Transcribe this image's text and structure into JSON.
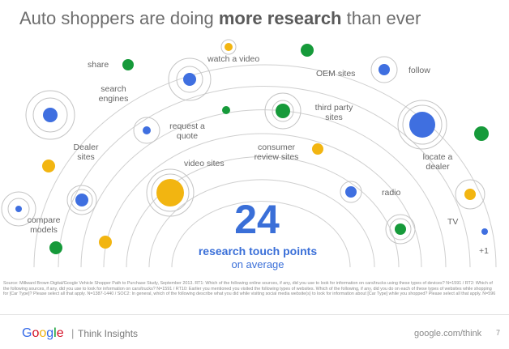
{
  "title": {
    "prefix": "Auto shoppers are doing ",
    "emphasis": "more research",
    "suffix": " than ever"
  },
  "touch_points": [
    {
      "label": "share"
    },
    {
      "label": "watch a video"
    },
    {
      "label": "OEM sites"
    },
    {
      "label": "follow"
    },
    {
      "label": "search engines"
    },
    {
      "label": "request a quote"
    },
    {
      "label": "third party sites"
    },
    {
      "label": "consumer review sites"
    },
    {
      "label": "locate a dealer"
    },
    {
      "label": "Dealer sites"
    },
    {
      "label": "video sites"
    },
    {
      "label": "radio"
    },
    {
      "label": "compare models"
    },
    {
      "label": "TV"
    },
    {
      "label": "+1"
    }
  ],
  "summary": {
    "count": "24",
    "line1": "research touch points",
    "line2": "on average"
  },
  "source_text": "Source: Millward Brown Digital/Google Vehicle Shopper Path to Purchase Study, September 2013. RT1: Which of the following online sources, if any, did you use to look for information on cars/trucks using these types of devices? N=1591 / RT2: Which of the following sources, if any, did you use to look for information on cars/trucks? N=1591 / RT10: Earlier you mentioned you visited the following types of websites. Which of the following, if any, did you do on each of these types of websites while shopping for [Car Type]? Please select all that apply. N=1387-1440 / SOC2: In general, which of the following describe what you did while visiting social media website(s) to look for information about [Car Type] while you shopped? Please select all that apply. N=596",
  "footer": {
    "brand": [
      "G",
      "o",
      "o",
      "g",
      "l",
      "e"
    ],
    "separator": "|",
    "product": "Think Insights",
    "url": "google.com/think",
    "page": "7"
  },
  "colors": {
    "blue": "#3f6fe0",
    "green": "#169a3a",
    "yellow": "#f2b511",
    "ring": "#c4c4c4",
    "accent": "#3a6fd8"
  }
}
